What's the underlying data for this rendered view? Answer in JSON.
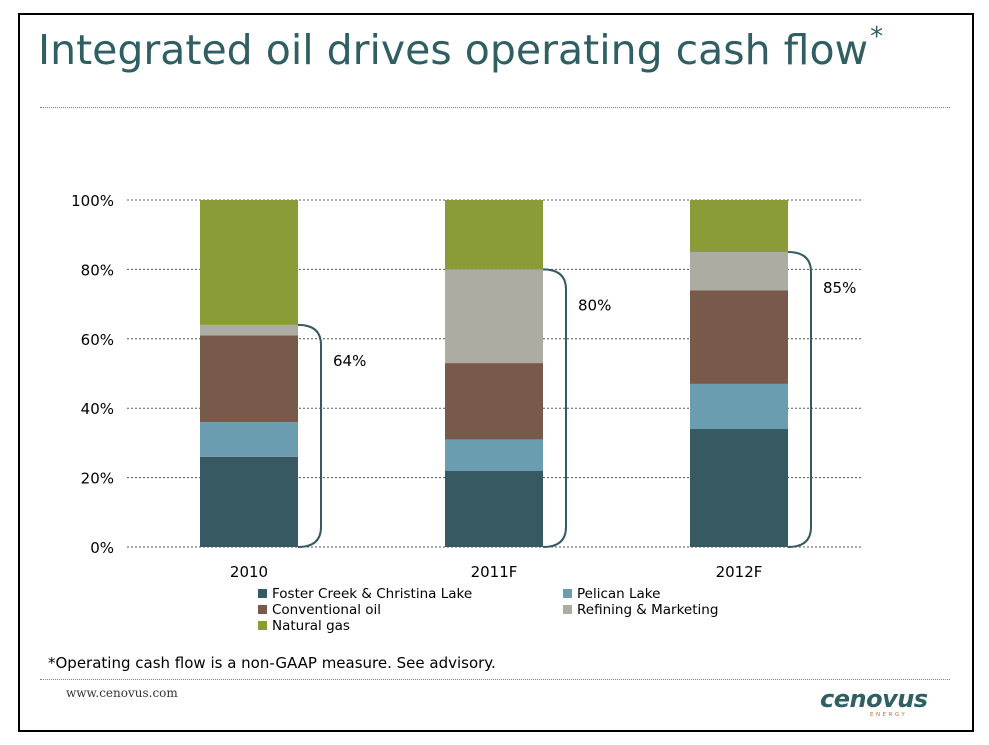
{
  "title": "Integrated oil drives operating cash flow",
  "title_marker": "*",
  "footnote": "*Operating cash flow is a non-GAAP measure. See advisory.",
  "website": "www.cenovus.com",
  "logo": {
    "name": "cenovus",
    "tagline": "ENERGY"
  },
  "colors": {
    "title": "#2f5f63",
    "foster": "#375a62",
    "pelican": "#6b9db0",
    "conventional": "#785a4a",
    "refining": "#acaca2",
    "natgas": "#899c37",
    "bracket": "#375a62"
  },
  "chart_data": {
    "type": "bar",
    "stacked": true,
    "categories": [
      "2010",
      "2011F",
      "2012F"
    ],
    "ylim": [
      0,
      100
    ],
    "yticks": [
      "0%",
      "20%",
      "40%",
      "60%",
      "80%",
      "100%"
    ],
    "grid": true,
    "legend_position": "bottom",
    "series": [
      {
        "name": "Foster Creek & Christina Lake",
        "values": [
          26,
          22,
          34
        ],
        "color": "#375a62"
      },
      {
        "name": "Pelican Lake",
        "values": [
          10,
          9,
          13
        ],
        "color": "#6b9db0"
      },
      {
        "name": "Conventional oil",
        "values": [
          25,
          22,
          27
        ],
        "color": "#785a4a"
      },
      {
        "name": "Refining & Marketing",
        "values": [
          3,
          27,
          11
        ],
        "color": "#acaca2"
      },
      {
        "name": "Natural gas",
        "values": [
          36,
          20,
          15
        ],
        "color": "#899c37"
      }
    ],
    "annotations": [
      {
        "category": "2010",
        "from": 0,
        "to": 64,
        "label": "64%"
      },
      {
        "category": "2011F",
        "from": 0,
        "to": 80,
        "label": "80%"
      },
      {
        "category": "2012F",
        "from": 0,
        "to": 85,
        "label": "85%"
      }
    ]
  }
}
